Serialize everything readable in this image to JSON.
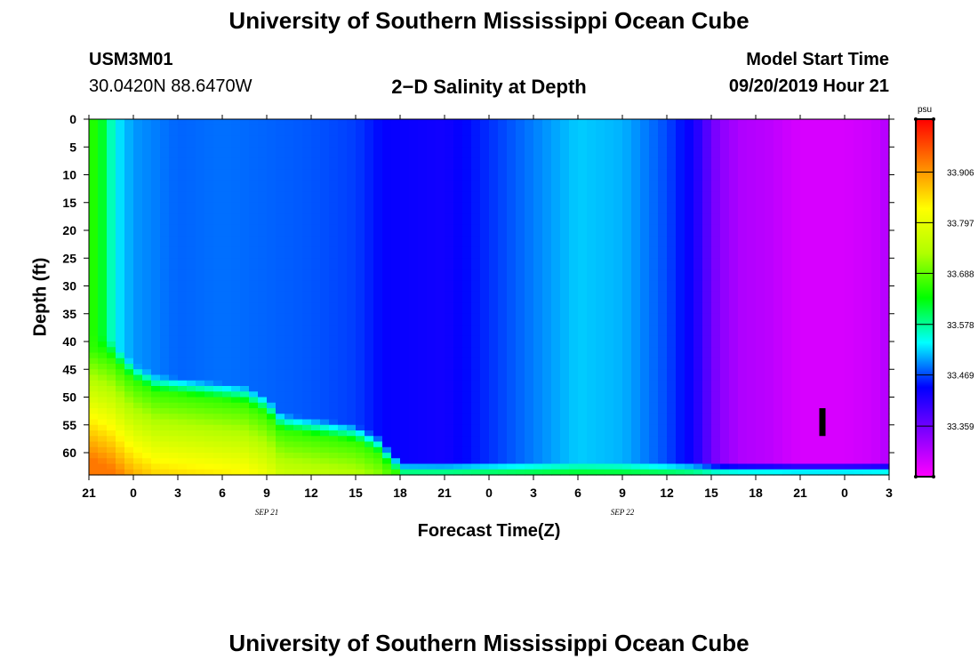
{
  "header": {
    "top_title": "University of Southern Mississippi Ocean Cube",
    "station_id": "USM3M01",
    "coordinates": "30.0420N 88.6470W",
    "plot_title": "2−D Salinity at Depth",
    "model_start_label": "Model Start Time",
    "model_start_value": "09/20/2019 Hour 21"
  },
  "footer": {
    "bottom_title": "University of Southern Mississippi Ocean Cube"
  },
  "chart_data": {
    "type": "heatmap",
    "title": "2−D Salinity at Depth",
    "xlabel": "Forecast Time(Z)",
    "ylabel": "Depth (ft)",
    "x_tick_labels": [
      "21",
      "0",
      "3",
      "6",
      "9",
      "12",
      "15",
      "18",
      "21",
      "0",
      "3",
      "6",
      "9",
      "12",
      "15",
      "18",
      "21",
      "0",
      "3"
    ],
    "date_labels": [
      {
        "label": "SEP 21",
        "at_hour": 12
      },
      {
        "label": "SEP 22",
        "at_hour": 36
      }
    ],
    "x_range_hours": [
      0,
      54
    ],
    "y_ticks": [
      0,
      5,
      10,
      15,
      20,
      25,
      30,
      35,
      40,
      45,
      50,
      55,
      60
    ],
    "ylim": [
      0,
      64
    ],
    "colorbar": {
      "unit": "psu",
      "range": [
        33.25,
        34.02
      ],
      "labels": [
        "33.906",
        "33.797",
        "33.688",
        "33.578",
        "33.469",
        "33.359"
      ],
      "colors": [
        "#ff00ff",
        "#8000ff",
        "#0000ff",
        "#00ffff",
        "#00ff00",
        "#b0ff00",
        "#ffff00",
        "#ff8000",
        "#ff0000"
      ]
    },
    "surface_salinity_profile": [
      {
        "hour": 0.0,
        "psu": 33.66
      },
      {
        "hour": 0.7,
        "psu": 33.64
      },
      {
        "hour": 1.3,
        "psu": 33.58
      },
      {
        "hour": 2.0,
        "psu": 33.53
      },
      {
        "hour": 3.0,
        "psu": 33.5
      },
      {
        "hour": 6.0,
        "psu": 33.48
      },
      {
        "hour": 9.0,
        "psu": 33.485
      },
      {
        "hour": 12.0,
        "psu": 33.48
      },
      {
        "hour": 15.0,
        "psu": 33.475
      },
      {
        "hour": 18.0,
        "psu": 33.465
      },
      {
        "hour": 20.0,
        "psu": 33.44
      },
      {
        "hour": 24.0,
        "psu": 33.43
      },
      {
        "hour": 27.0,
        "psu": 33.46
      },
      {
        "hour": 30.0,
        "psu": 33.49
      },
      {
        "hour": 33.0,
        "psu": 33.52
      },
      {
        "hour": 36.0,
        "psu": 33.51
      },
      {
        "hour": 39.0,
        "psu": 33.47
      },
      {
        "hour": 40.8,
        "psu": 33.43
      },
      {
        "hour": 41.5,
        "psu": 33.39
      },
      {
        "hour": 42.5,
        "psu": 33.34
      },
      {
        "hour": 44.0,
        "psu": 33.31
      },
      {
        "hour": 46.0,
        "psu": 33.3
      },
      {
        "hour": 48.0,
        "psu": 33.28
      },
      {
        "hour": 51.0,
        "psu": 33.28
      },
      {
        "hour": 53.0,
        "psu": 33.29
      },
      {
        "hour": 54.0,
        "psu": 33.31
      }
    ],
    "bottom_layer_boundary": [
      {
        "hour": 0.0,
        "depth_ft": 41
      },
      {
        "hour": 1.5,
        "depth_ft": 43
      },
      {
        "hour": 3.0,
        "depth_ft": 47
      },
      {
        "hour": 4.5,
        "depth_ft": 49
      },
      {
        "hour": 7.5,
        "depth_ft": 50
      },
      {
        "hour": 10.5,
        "depth_ft": 51
      },
      {
        "hour": 12.0,
        "depth_ft": 53
      },
      {
        "hour": 13.0,
        "depth_ft": 56
      },
      {
        "hour": 15.5,
        "depth_ft": 57
      },
      {
        "hour": 18.0,
        "depth_ft": 58
      },
      {
        "hour": 19.5,
        "depth_ft": 60
      },
      {
        "hour": 20.5,
        "depth_ft": 63
      },
      {
        "hour": 21.2,
        "depth_ft": 64.5
      }
    ],
    "bottom_layer_psu": {
      "near_boundary": 33.66,
      "deep": 33.93
    },
    "marker": {
      "hour": 49.5,
      "depth_from_ft": 52,
      "depth_to_ft": 57
    }
  }
}
